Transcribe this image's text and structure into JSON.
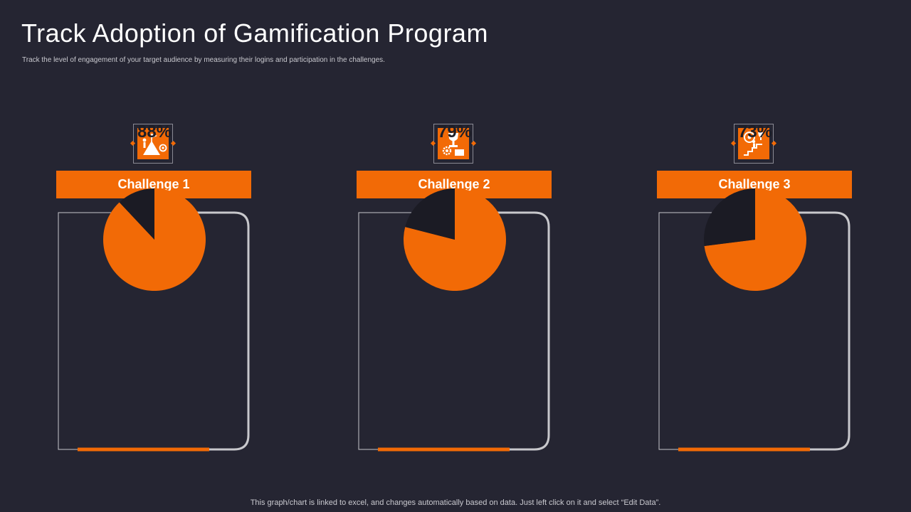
{
  "title": "Track Adoption of Gamification Program",
  "subtitle": "Track the level of engagement of your target audience by measuring their logins and participation in the challenges.",
  "colors": {
    "accent": "#f26a06",
    "remainder": "#1b1b24",
    "background": "#252532",
    "frame": "#c8c8cc"
  },
  "chart_data": [
    {
      "type": "pie",
      "title": "Challenge 1",
      "icon": "mountain-flag-icon",
      "values": [
        88,
        12
      ],
      "label": "88%"
    },
    {
      "type": "pie",
      "title": "Challenge 2",
      "icon": "trophy-gear-icon",
      "values": [
        79,
        21
      ],
      "label": "79%"
    },
    {
      "type": "pie",
      "title": "Challenge 3",
      "icon": "target-climber-icon",
      "values": [
        73,
        27
      ],
      "label": "73%"
    }
  ],
  "footnote": "This graph/chart is linked to excel, and changes automatically based on data. Just left click on it and select “Edit Data”."
}
